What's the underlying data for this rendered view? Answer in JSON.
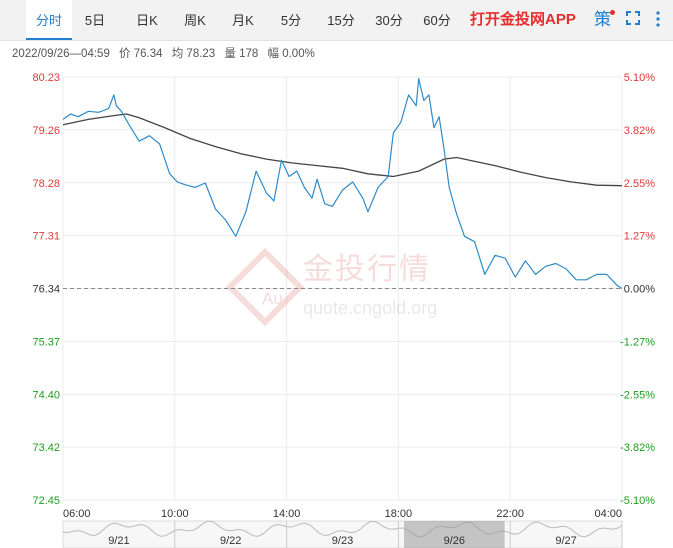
{
  "tabs": [
    {
      "label": "分时",
      "active": true
    },
    {
      "label": "5日",
      "active": false
    },
    {
      "label": "日K",
      "active": false
    },
    {
      "label": "周K",
      "active": false
    },
    {
      "label": "月K",
      "active": false
    },
    {
      "label": "5分",
      "active": false
    },
    {
      "label": "15分",
      "active": false
    },
    {
      "label": "30分",
      "active": false
    },
    {
      "label": "60分",
      "active": false
    }
  ],
  "promo_label": "打开金投网APP",
  "strategy_label": "策",
  "info": {
    "time_range": "2022/09/26—04:59",
    "price": "价 76.34",
    "average": "均 78.23",
    "volume": "量 178",
    "change": "幅 0.00%"
  },
  "watermark": {
    "brand": "金投行情",
    "logo_text": "Au",
    "url": "quote.cngold.org"
  },
  "colors": {
    "price_line": "#2e8bc7",
    "average_line": "#444444",
    "up": "#e03a3a",
    "down": "#1e9e1e",
    "flat": "#333333",
    "accent": "#1f7fd1"
  },
  "chart_data": {
    "type": "line",
    "y_labels_left": [
      "80.23",
      "79.26",
      "78.28",
      "77.31",
      "76.34",
      "75.37",
      "74.40",
      "73.42",
      "72.45"
    ],
    "y_labels_right": [
      "5.10%",
      "3.82%",
      "2.55%",
      "1.27%",
      "0.00%",
      "-1.27%",
      "-2.55%",
      "-3.82%",
      "-5.10%"
    ],
    "ylim": [
      72.45,
      80.23
    ],
    "baseline": 76.34,
    "x_ticks": [
      "06:00",
      "10:00",
      "14:00",
      "18:00",
      "22:00",
      "04:00"
    ],
    "x_range_hours": [
      0,
      22
    ],
    "navigator_dates": [
      "9/21",
      "9/22",
      "9/23",
      "9/26",
      "9/27"
    ],
    "series": [
      {
        "name": "价",
        "x": [
          0,
          0.3,
          0.6,
          1,
          1.4,
          1.8,
          2,
          2.1,
          2.3,
          2.6,
          3,
          3.4,
          3.8,
          4.2,
          4.5,
          4.8,
          5.2,
          5.6,
          6,
          6.4,
          6.8,
          7.2,
          7.6,
          8,
          8.3,
          8.6,
          8.9,
          9.2,
          9.5,
          9.8,
          10,
          10.3,
          10.6,
          11,
          11.4,
          11.8,
          12,
          12.4,
          12.8,
          13,
          13.3,
          13.6,
          13.9,
          14,
          14.2,
          14.4,
          14.6,
          14.8,
          15,
          15.2,
          15.5,
          15.8,
          16.2,
          16.6,
          17,
          17.4,
          17.8,
          18.2,
          18.6,
          19,
          19.4,
          19.8,
          20.2,
          20.6,
          21,
          21.4,
          21.8,
          22
        ],
        "y": [
          79.45,
          79.55,
          79.5,
          79.6,
          79.58,
          79.65,
          79.9,
          79.7,
          79.6,
          79.35,
          79.05,
          79.15,
          79.0,
          78.45,
          78.3,
          78.25,
          78.2,
          78.28,
          77.8,
          77.6,
          77.3,
          77.75,
          78.5,
          78.1,
          77.95,
          78.7,
          78.4,
          78.5,
          78.2,
          78.0,
          78.35,
          77.9,
          77.85,
          78.15,
          78.3,
          78.0,
          77.75,
          78.2,
          78.4,
          79.2,
          79.4,
          79.9,
          79.7,
          80.2,
          79.8,
          79.9,
          79.3,
          79.5,
          78.9,
          78.2,
          77.7,
          77.3,
          77.2,
          76.6,
          76.95,
          76.9,
          76.55,
          76.85,
          76.6,
          76.75,
          76.8,
          76.7,
          76.5,
          76.5,
          76.6,
          76.6,
          76.4,
          76.34
        ]
      },
      {
        "name": "均",
        "x": [
          0,
          1,
          2,
          2.5,
          3,
          4,
          5,
          6,
          7,
          8,
          9,
          10,
          11,
          12,
          13,
          14,
          15,
          15.5,
          16,
          17,
          18,
          19,
          20,
          21,
          22
        ],
        "y": [
          79.35,
          79.45,
          79.52,
          79.55,
          79.48,
          79.3,
          79.1,
          78.95,
          78.82,
          78.72,
          78.65,
          78.6,
          78.55,
          78.45,
          78.4,
          78.5,
          78.72,
          78.75,
          78.7,
          78.6,
          78.48,
          78.38,
          78.3,
          78.24,
          78.23
        ]
      }
    ]
  }
}
